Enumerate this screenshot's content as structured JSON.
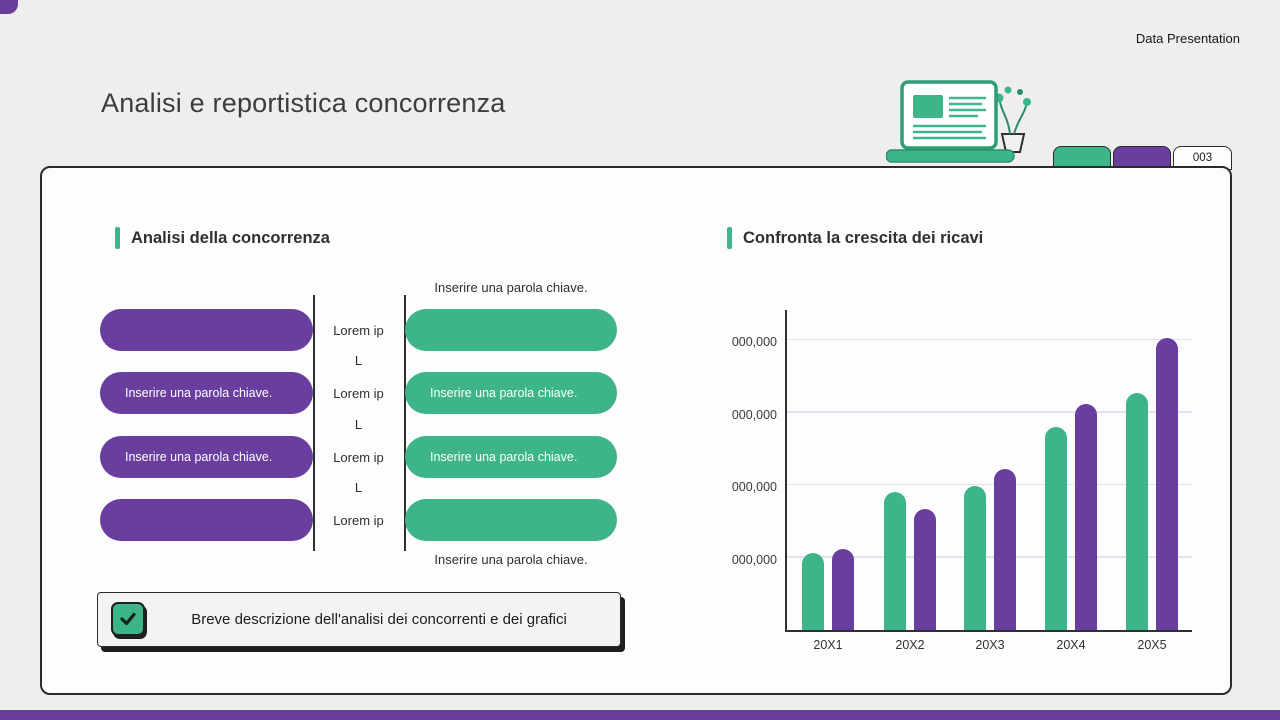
{
  "page": {
    "corner_label": "Data Presentation",
    "title": "Analisi e reportistica concorrenza",
    "tabs": {
      "page_number": "003"
    }
  },
  "colors": {
    "green": "#3eb489",
    "purple": "#6a3e9e",
    "dark": "#2b2b2b",
    "background": "#efeeee",
    "card": "#fdfdfd"
  },
  "left_panel": {
    "heading": "Analisi della concorrenza",
    "captions": {
      "top": "Inserire una parola chiave.",
      "bottom": "Inserire una parola chiave."
    },
    "rows": [
      {
        "left": "",
        "center": "Lorem ip",
        "right": ""
      },
      {
        "left": "Inserire una parola chiave.",
        "center": "Lorem ip",
        "right": "Inserire una parola chiave."
      },
      {
        "left": "Inserire una parola chiave.",
        "center": "Lorem ip",
        "right": "Inserire una parola chiave."
      },
      {
        "left": "",
        "center": "Lorem ip",
        "right": ""
      }
    ],
    "connectors": [
      "L",
      "L",
      "L"
    ],
    "note": {
      "checked": true,
      "text": "Breve descrizione dell'analisi dei concorrenti e dei grafici"
    }
  },
  "right_panel": {
    "heading": "Confronta la crescita dei ricavi"
  },
  "chart_data": {
    "type": "bar",
    "title": "Confronta la crescita dei ricavi",
    "categories": [
      "20X1",
      "20X2",
      "20X3",
      "20X4",
      "20X5"
    ],
    "series": [
      {
        "name": "green",
        "color": "#3eb489",
        "values": [
          1.06,
          1.9,
          1.99,
          2.8,
          3.28
        ]
      },
      {
        "name": "purple",
        "color": "#6a3e9e",
        "values": [
          1.12,
          1.67,
          2.22,
          3.12,
          4.04
        ]
      }
    ],
    "y_tick_labels": [
      "000,000",
      "000,000",
      "000,000",
      "000,000"
    ],
    "y_tick_values": [
      1,
      2,
      3,
      4
    ],
    "ylim": [
      0,
      4.42
    ],
    "xlabel": "",
    "ylabel": "",
    "grid": true,
    "legend": "none"
  }
}
